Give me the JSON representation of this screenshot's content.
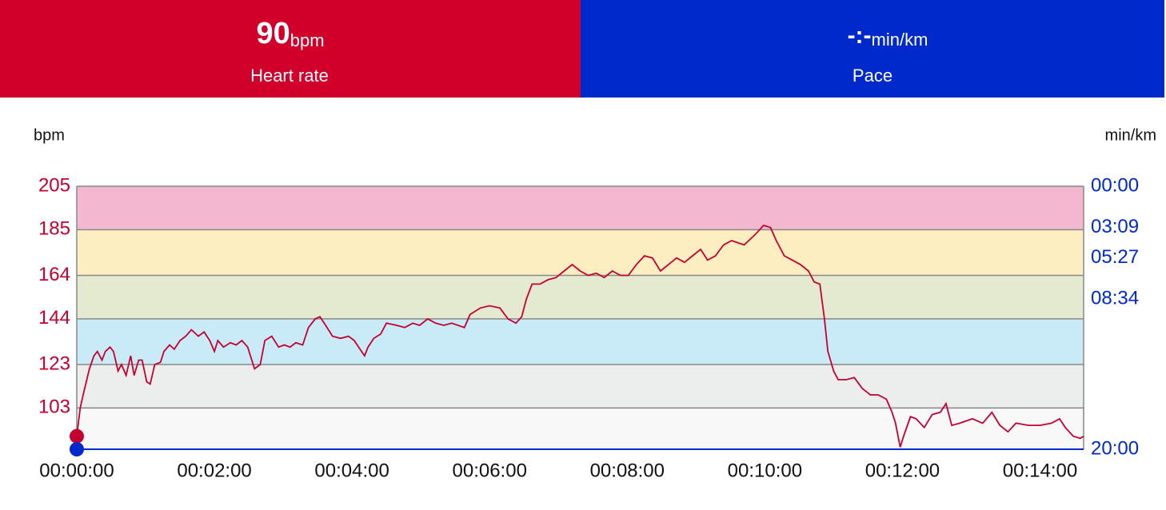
{
  "header": {
    "heart_rate": {
      "value": 90,
      "unit": "bpm",
      "label": "Heart rate",
      "color": "#d0002a"
    },
    "pace": {
      "value": "-:-",
      "unit": "min/km",
      "label": "Pace",
      "color": "#0029cc"
    }
  },
  "chart_data": {
    "type": "line",
    "ylabel": "bpm",
    "y2label": "min/km",
    "ylim": [
      84,
      205
    ],
    "yticks": [
      103,
      123,
      144,
      164,
      185,
      205
    ],
    "y2lim": [
      1200,
      0
    ],
    "y2ticks": [
      {
        "value": 1200,
        "label": "20:00"
      },
      {
        "value": 514,
        "label": "08:34"
      },
      {
        "value": 327,
        "label": "05:27"
      },
      {
        "value": 189,
        "label": "03:09"
      },
      {
        "value": 0,
        "label": "00:00"
      }
    ],
    "xlim": [
      0,
      878
    ],
    "xticks": [
      {
        "value": 0,
        "label": "00:00:00"
      },
      {
        "value": 120,
        "label": "00:02:00"
      },
      {
        "value": 240,
        "label": "00:04:00"
      },
      {
        "value": 360,
        "label": "00:06:00"
      },
      {
        "value": 480,
        "label": "00:08:00"
      },
      {
        "value": 600,
        "label": "00:10:00"
      },
      {
        "value": 720,
        "label": "00:12:00"
      },
      {
        "value": 840,
        "label": "00:14:00"
      }
    ],
    "zone_colors": [
      "#f8f8f8",
      "#eceeed",
      "#c9eaf7",
      "#e3ead0",
      "#fdeec2",
      "#f3b8cf"
    ],
    "grid": true,
    "series": [
      {
        "color": "#c4002f",
        "x": [
          0,
          3,
          6,
          11,
          15,
          18,
          22,
          25,
          29,
          32,
          36,
          39,
          43,
          47,
          50,
          54,
          57,
          61,
          64,
          68,
          73,
          76,
          81,
          85,
          90,
          95,
          100,
          106,
          111,
          116,
          120,
          123,
          128,
          134,
          139,
          144,
          149,
          155,
          160,
          164,
          170,
          176,
          181,
          186,
          191,
          197,
          202,
          208,
          212,
          217,
          223,
          230,
          237,
          242,
          247,
          251,
          254,
          259,
          265,
          270,
          279,
          286,
          293,
          299,
          306,
          313,
          320,
          327,
          338,
          343,
          352,
          360,
          369,
          376,
          383,
          388,
          392,
          397,
          404,
          411,
          418,
          425,
          432,
          439,
          446,
          453,
          460,
          467,
          474,
          481,
          488,
          495,
          502,
          509,
          516,
          523,
          530,
          537,
          544,
          550,
          557,
          564,
          571,
          582,
          592,
          599,
          605,
          610,
          617,
          624,
          631,
          638,
          643,
          648,
          652,
          655,
          660,
          664,
          671,
          678,
          685,
          692,
          699,
          706,
          711,
          714,
          718,
          721,
          727,
          732,
          739,
          746,
          753,
          758,
          763,
          770,
          781,
          790,
          798,
          805,
          812,
          819,
          830,
          840,
          850,
          857,
          862,
          869,
          875,
          878
        ],
        "values": [
          90,
          103,
          110,
          121,
          127,
          129,
          125,
          129,
          131,
          129,
          120,
          123,
          118,
          127,
          118,
          125,
          125,
          115,
          114,
          123,
          124,
          129,
          132,
          130,
          134,
          136,
          139,
          136,
          138,
          134,
          129,
          134,
          131,
          133,
          132,
          134,
          131,
          121,
          123,
          134,
          136,
          131,
          132,
          131,
          133,
          132,
          140,
          144,
          145,
          141,
          136,
          135,
          136,
          134,
          130,
          127,
          131,
          135,
          137,
          142,
          141,
          140,
          142,
          141,
          144,
          142,
          141,
          142,
          140,
          146,
          149,
          150,
          149,
          144,
          142,
          145,
          153,
          160,
          160,
          162,
          163,
          166,
          169,
          166,
          164,
          165,
          163,
          166,
          164,
          164,
          169,
          173,
          172,
          166,
          169,
          172,
          170,
          173,
          176,
          171,
          173,
          178,
          180,
          178,
          183,
          187,
          186,
          180,
          173,
          171,
          169,
          166,
          161,
          160,
          144,
          129,
          120,
          116,
          116,
          117,
          112,
          109,
          109,
          107,
          101,
          96,
          85,
          90,
          99,
          98,
          94,
          100,
          101,
          105,
          95,
          96,
          98,
          96,
          101,
          95,
          92,
          96,
          95,
          95,
          96,
          98,
          94,
          90,
          89,
          90
        ]
      },
      {
        "color": "#0029cc",
        "axis": "y2",
        "x": [
          0,
          878
        ],
        "values": [
          1200,
          1200
        ]
      }
    ]
  }
}
